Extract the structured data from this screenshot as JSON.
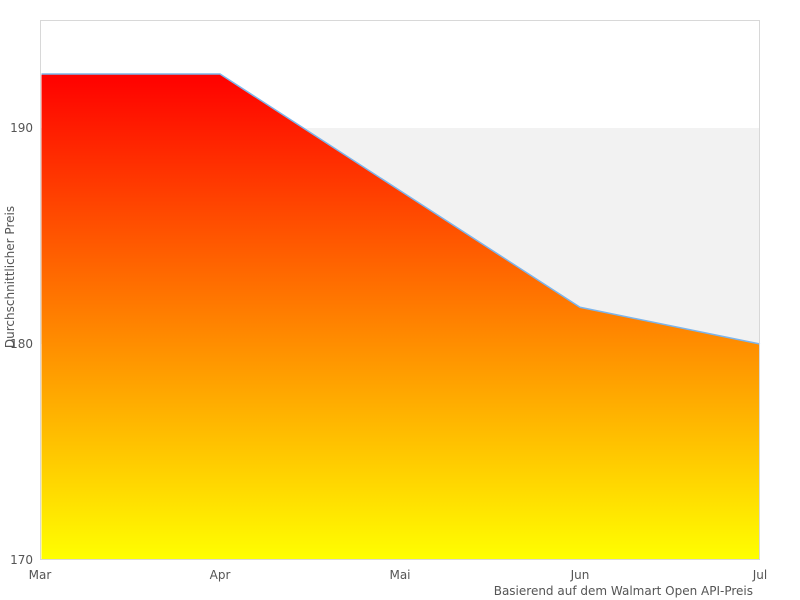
{
  "chart_data": {
    "type": "area",
    "title": "",
    "xlabel": "",
    "ylabel": "Durchschnittlicher Preis",
    "caption": "Basierend auf dem Walmart Open API-Preis",
    "categories": [
      "Mar",
      "Apr",
      "Mai",
      "Jun",
      "Jul"
    ],
    "values": [
      192.5,
      192.5,
      187.1,
      181.7,
      180
    ],
    "series_name": "Durchschnittlicher Preis",
    "ylim": [
      170,
      195
    ],
    "yticks": [
      170,
      180,
      190
    ],
    "grid": "none; alternate horizontal band shaded between y=180 and y=190",
    "legend": "none",
    "band": {
      "from": 180,
      "to": 190,
      "color": "#f2f2f2"
    },
    "colors": {
      "line": "#7cb5ec",
      "gradient_top": "#ff0000",
      "gradient_bottom": "#ffff00",
      "plot_border": "#d8d8d8",
      "plot_background": "#ffffff",
      "label_text": "#555555"
    }
  }
}
